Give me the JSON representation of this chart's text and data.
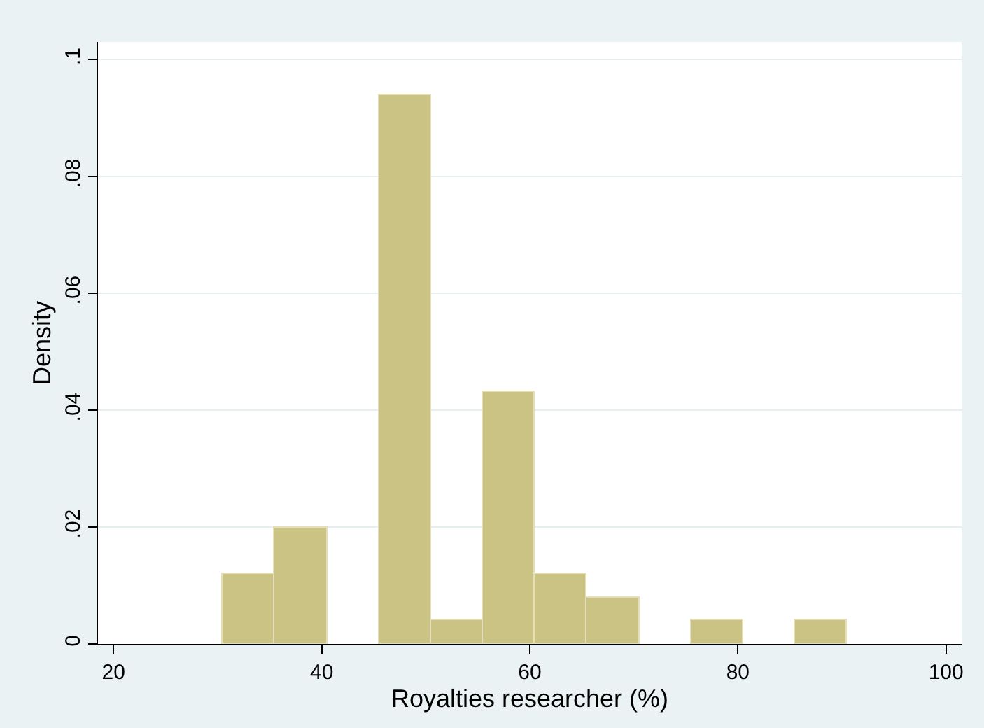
{
  "chart_data": {
    "type": "histogram",
    "xlabel": "Royalties researcher (%)",
    "ylabel": "Density",
    "bins": [
      30.5,
      35.5,
      40.5,
      45.5,
      50.5,
      55.5,
      60.5,
      65.5,
      70.5,
      75.5,
      80.5,
      85.5,
      90.5
    ],
    "values": [
      0.012,
      0.02,
      0,
      0.094,
      0.004,
      0.043,
      0.012,
      0.008,
      0,
      0.004,
      0,
      0.004
    ],
    "color": "#cbc383",
    "xlim": [
      18.5,
      101.5
    ],
    "xticks": [
      20,
      40,
      60,
      80,
      100
    ],
    "ylim": [
      0,
      0.103
    ],
    "yticks": [
      {
        "value": 0,
        "label": "0"
      },
      {
        "value": 0.02,
        "label": ".02"
      },
      {
        "value": 0.04,
        "label": ".04"
      },
      {
        "value": 0.06,
        "label": ".06"
      },
      {
        "value": 0.08,
        "label": ".08"
      },
      {
        "value": 0.1,
        "label": ".1"
      }
    ],
    "grid": "y"
  }
}
